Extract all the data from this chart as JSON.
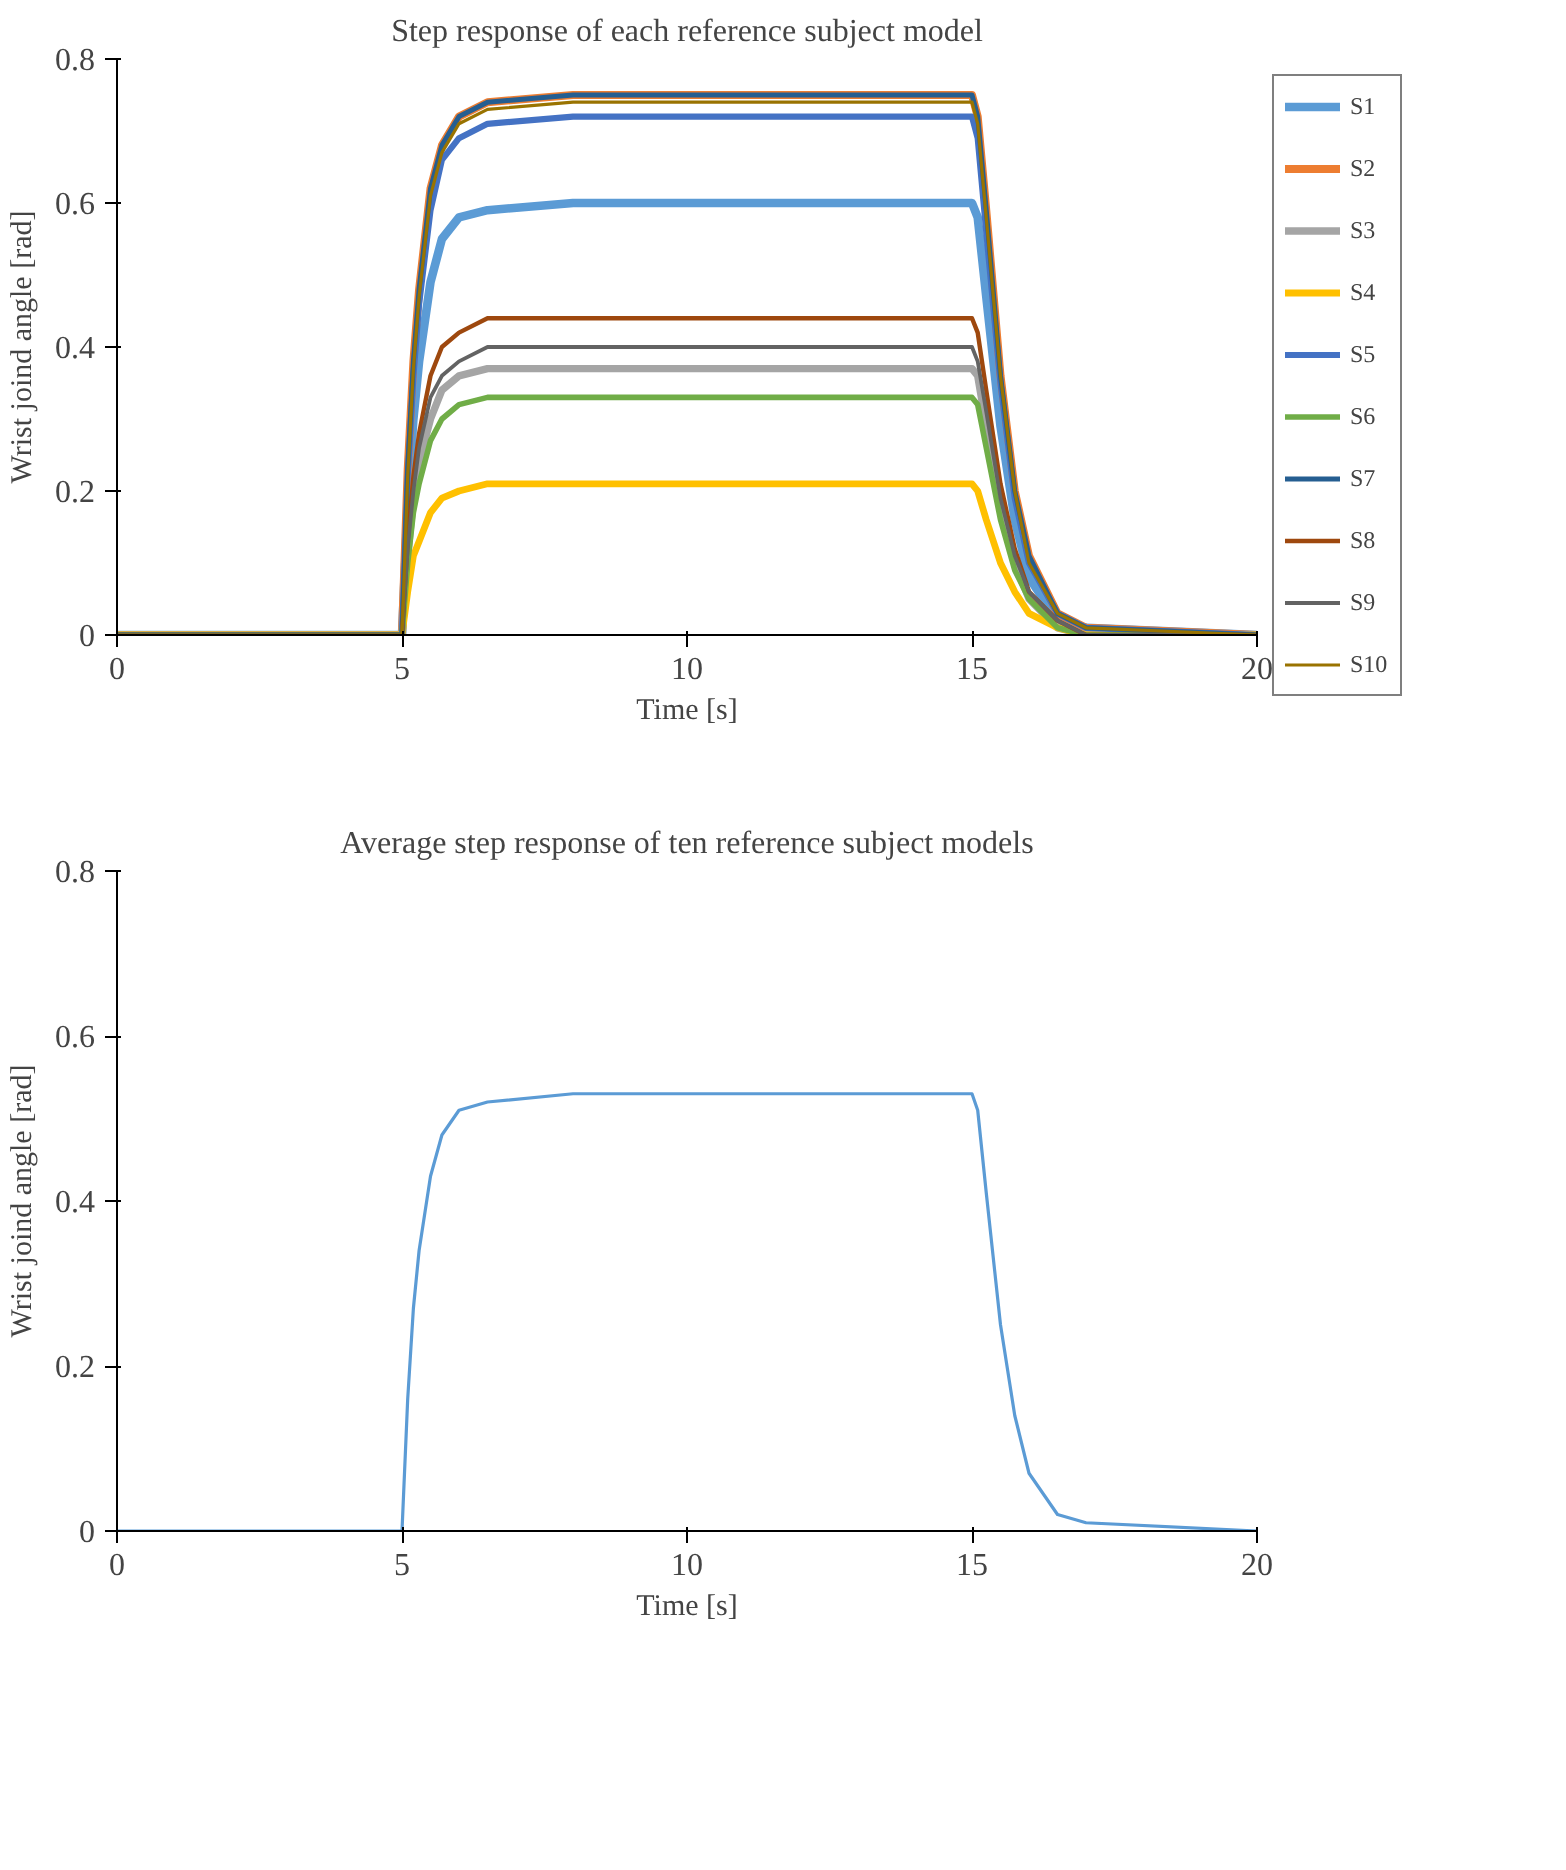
{
  "chart_data": [
    {
      "type": "line",
      "title": "Step response of each reference subject model",
      "xlabel": "Time [s]",
      "ylabel": "Wrist joind angle [rad]",
      "xlim": [
        0,
        20
      ],
      "ylim": [
        0,
        0.8
      ],
      "xticks": [
        0,
        5,
        10,
        15,
        20
      ],
      "yticks": [
        0,
        0.2,
        0.4,
        0.6,
        0.8
      ],
      "grid": false,
      "legend": "right",
      "marker": "none",
      "line_style": "solid",
      "x": [
        0,
        5,
        5.1,
        5.2,
        5.3,
        5.5,
        5.7,
        6,
        6.5,
        8,
        15,
        15.1,
        15.25,
        15.5,
        15.75,
        16,
        16.5,
        17,
        20
      ],
      "series": [
        {
          "name": "S1",
          "color": "#5b9bd5",
          "values": [
            0,
            0,
            0.18,
            0.3,
            0.38,
            0.49,
            0.55,
            0.58,
            0.59,
            0.6,
            0.6,
            0.58,
            0.47,
            0.29,
            0.16,
            0.08,
            0.02,
            0.01,
            0
          ]
        },
        {
          "name": "S2",
          "color": "#ed7d31",
          "values": [
            0,
            0,
            0.23,
            0.38,
            0.48,
            0.62,
            0.68,
            0.72,
            0.74,
            0.75,
            0.75,
            0.72,
            0.59,
            0.36,
            0.2,
            0.11,
            0.03,
            0.01,
            0
          ]
        },
        {
          "name": "S3",
          "color": "#a5a5a5",
          "values": [
            0,
            0,
            0.11,
            0.19,
            0.24,
            0.3,
            0.34,
            0.36,
            0.37,
            0.37,
            0.37,
            0.36,
            0.29,
            0.18,
            0.1,
            0.05,
            0.01,
            0,
            0
          ]
        },
        {
          "name": "S4",
          "color": "#ffc000",
          "values": [
            0,
            0,
            0.06,
            0.11,
            0.13,
            0.17,
            0.19,
            0.2,
            0.21,
            0.21,
            0.21,
            0.2,
            0.16,
            0.1,
            0.06,
            0.03,
            0.01,
            0,
            0
          ]
        },
        {
          "name": "S5",
          "color": "#4472c4",
          "values": [
            0,
            0,
            0.22,
            0.36,
            0.46,
            0.59,
            0.66,
            0.69,
            0.71,
            0.72,
            0.72,
            0.69,
            0.56,
            0.35,
            0.19,
            0.1,
            0.03,
            0.01,
            0
          ]
        },
        {
          "name": "S6",
          "color": "#70ad47",
          "values": [
            0,
            0,
            0.1,
            0.17,
            0.21,
            0.27,
            0.3,
            0.32,
            0.33,
            0.33,
            0.33,
            0.32,
            0.26,
            0.16,
            0.09,
            0.05,
            0.01,
            0,
            0
          ]
        },
        {
          "name": "S7",
          "color": "#255e91",
          "values": [
            0,
            0,
            0.23,
            0.38,
            0.48,
            0.62,
            0.68,
            0.72,
            0.74,
            0.75,
            0.75,
            0.72,
            0.59,
            0.36,
            0.2,
            0.11,
            0.03,
            0.01,
            0
          ]
        },
        {
          "name": "S8",
          "color": "#9e480e",
          "values": [
            0,
            0,
            0.13,
            0.22,
            0.28,
            0.36,
            0.4,
            0.42,
            0.44,
            0.44,
            0.44,
            0.42,
            0.34,
            0.21,
            0.12,
            0.06,
            0.02,
            0,
            0
          ]
        },
        {
          "name": "S9",
          "color": "#636363",
          "values": [
            0,
            0,
            0.12,
            0.2,
            0.26,
            0.33,
            0.36,
            0.38,
            0.4,
            0.4,
            0.4,
            0.38,
            0.31,
            0.19,
            0.11,
            0.06,
            0.02,
            0,
            0
          ]
        },
        {
          "name": "S10",
          "color": "#997300",
          "values": [
            0,
            0,
            0.22,
            0.37,
            0.47,
            0.61,
            0.67,
            0.71,
            0.73,
            0.74,
            0.74,
            0.71,
            0.58,
            0.36,
            0.2,
            0.1,
            0.03,
            0.01,
            0
          ]
        }
      ]
    },
    {
      "type": "line",
      "title": "Average step response of ten reference subject models",
      "xlabel": "Time [s]",
      "ylabel": "Wrist joind angle [rad]",
      "xlim": [
        0,
        20
      ],
      "ylim": [
        0,
        0.8
      ],
      "xticks": [
        0,
        5,
        10,
        15,
        20
      ],
      "yticks": [
        0,
        0.2,
        0.4,
        0.6,
        0.8
      ],
      "grid": false,
      "legend": false,
      "marker": "none",
      "line_style": "solid",
      "x": [
        0,
        5,
        5.1,
        5.2,
        5.3,
        5.5,
        5.7,
        6,
        6.5,
        8,
        15,
        15.1,
        15.25,
        15.5,
        15.75,
        16,
        16.5,
        17,
        20
      ],
      "series": [
        {
          "color": "#5b9bd5",
          "values": [
            0,
            0,
            0.16,
            0.27,
            0.34,
            0.43,
            0.48,
            0.51,
            0.52,
            0.53,
            0.53,
            0.51,
            0.41,
            0.25,
            0.14,
            0.07,
            0.02,
            0.01,
            0
          ]
        }
      ]
    }
  ]
}
